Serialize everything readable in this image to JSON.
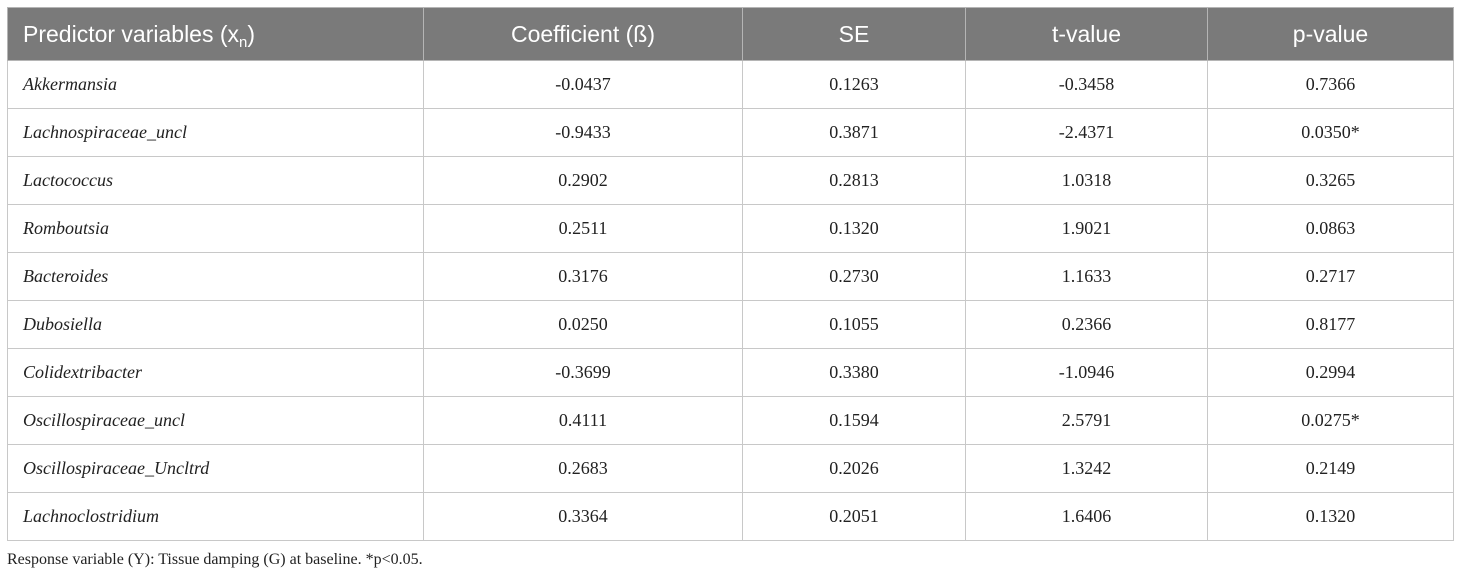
{
  "table": {
    "header": {
      "predictor_main": "Predictor variables (x",
      "predictor_sub": "n",
      "predictor_close": ")",
      "coefficient": "Coefficient (ß)",
      "se": "SE",
      "t_value": "t-value",
      "p_value": "p-value"
    },
    "rows": [
      {
        "name": "Akkermansia",
        "coefficient": "-0.0437",
        "se": "0.1263",
        "t_value": "-0.3458",
        "p_value": "0.7366"
      },
      {
        "name": "Lachnospiraceae_uncl",
        "coefficient": "-0.9433",
        "se": "0.3871",
        "t_value": "-2.4371",
        "p_value": "0.0350*"
      },
      {
        "name": "Lactococcus",
        "coefficient": "0.2902",
        "se": "0.2813",
        "t_value": "1.0318",
        "p_value": "0.3265"
      },
      {
        "name": "Romboutsia",
        "coefficient": "0.2511",
        "se": "0.1320",
        "t_value": "1.9021",
        "p_value": "0.0863"
      },
      {
        "name": "Bacteroides",
        "coefficient": "0.3176",
        "se": "0.2730",
        "t_value": "1.1633",
        "p_value": "0.2717"
      },
      {
        "name": "Dubosiella",
        "coefficient": "0.0250",
        "se": "0.1055",
        "t_value": "0.2366",
        "p_value": "0.8177"
      },
      {
        "name": "Colidextribacter",
        "coefficient": "-0.3699",
        "se": "0.3380",
        "t_value": "-1.0946",
        "p_value": "0.2994"
      },
      {
        "name": "Oscillospiraceae_uncl",
        "coefficient": "0.4111",
        "se": "0.1594",
        "t_value": "2.5791",
        "p_value": "0.0275*"
      },
      {
        "name": "Oscillospiraceae_Uncltrd",
        "coefficient": "0.2683",
        "se": "0.2026",
        "t_value": "1.3242",
        "p_value": "0.2149"
      },
      {
        "name": "Lachnoclostridium",
        "coefficient": "0.3364",
        "se": "0.2051",
        "t_value": "1.6406",
        "p_value": "0.1320"
      }
    ]
  },
  "footnote": "Response variable (Y): Tissue damping (G) at baseline. *p<0.05.",
  "colors": {
    "header_background": "#7a7a7a",
    "header_text": "#ffffff",
    "border": "#c8c8c8",
    "body_text": "#222222"
  }
}
